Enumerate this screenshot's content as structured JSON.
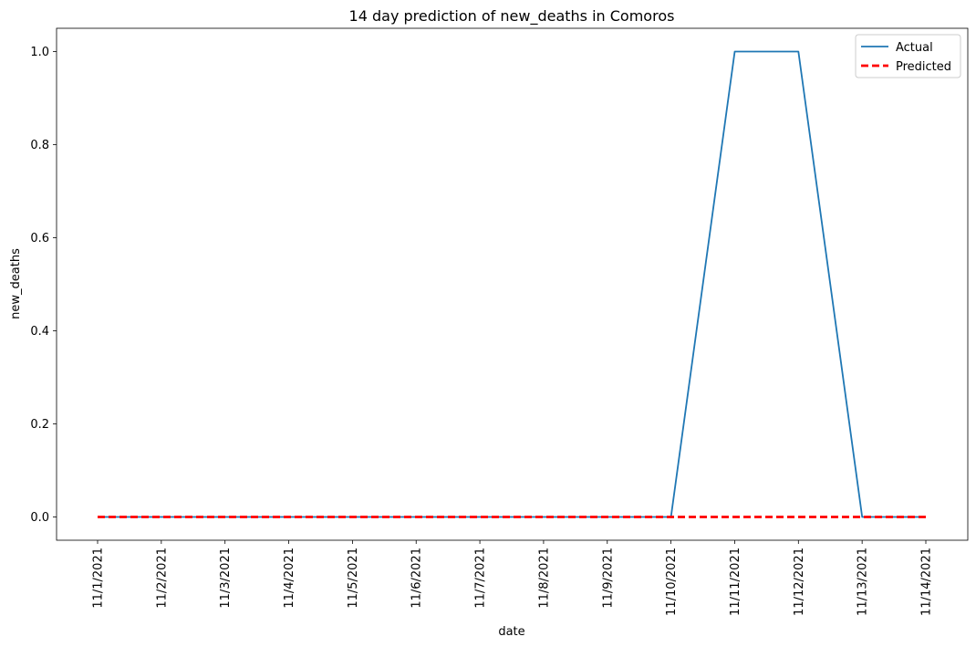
{
  "chart_data": {
    "type": "line",
    "title": "14 day prediction of new_deaths in Comoros",
    "xlabel": "date",
    "ylabel": "new_deaths",
    "x": [
      "11/1/2021",
      "11/2/2021",
      "11/3/2021",
      "11/4/2021",
      "11/5/2021",
      "11/6/2021",
      "11/7/2021",
      "11/8/2021",
      "11/9/2021",
      "11/10/2021",
      "11/11/2021",
      "11/12/2021",
      "11/13/2021",
      "11/14/2021"
    ],
    "yticks": [
      "0.0",
      "0.2",
      "0.4",
      "0.6",
      "0.8",
      "1.0"
    ],
    "ytick_values": [
      0,
      0.2,
      0.4,
      0.6,
      0.8,
      1.0
    ],
    "ylim": [
      -0.05,
      1.05
    ],
    "grid": false,
    "legend_position": "top-right",
    "series": [
      {
        "name": "Actual",
        "color": "#1f77b4",
        "style": "solid",
        "values": [
          0,
          0,
          0,
          0,
          0,
          0,
          0,
          0,
          0,
          0,
          1,
          1,
          0,
          0
        ]
      },
      {
        "name": "Predicted",
        "color": "#ff0000",
        "style": "dashed",
        "values": [
          0,
          0,
          0,
          0,
          0,
          0,
          0,
          0,
          0,
          0,
          0,
          0,
          0,
          0
        ]
      }
    ]
  }
}
